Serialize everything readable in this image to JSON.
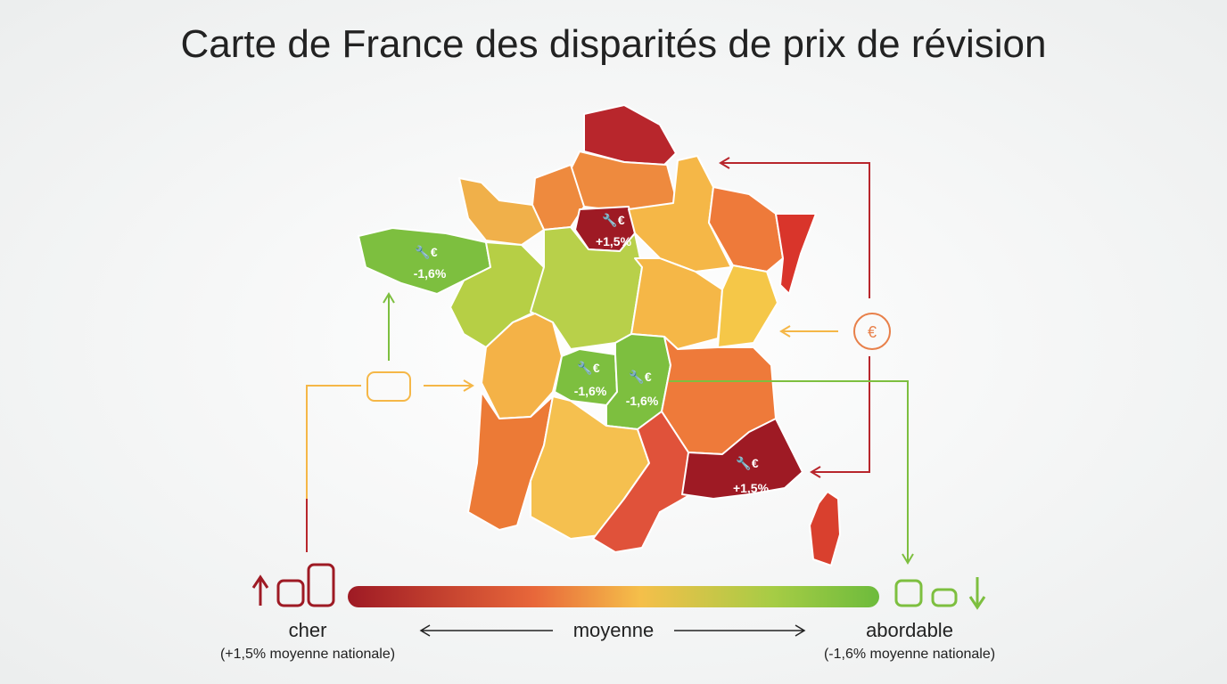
{
  "title": "Carte de France des disparités de prix de révision",
  "badges": [
    {
      "label": "+1,5%"
    },
    {
      "label": "-1,6%"
    },
    {
      "label": "-1,6%"
    },
    {
      "label": "-1,6%"
    },
    {
      "label": "+1,5%"
    }
  ],
  "legend": {
    "high": "cher",
    "high_note": "(+1,5% moyenne nationale)",
    "mid": "moyenne",
    "low": "abordable",
    "low_note": "(-1,6% moyenne nationale)"
  }
}
